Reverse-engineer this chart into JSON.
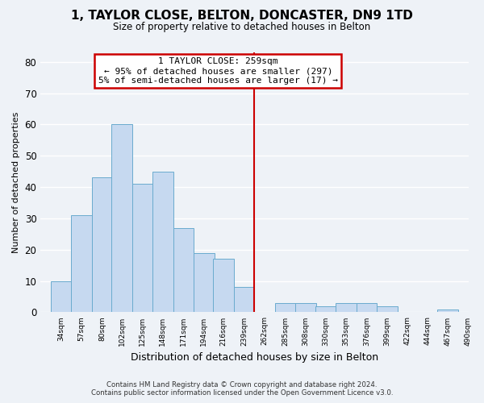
{
  "title": "1, TAYLOR CLOSE, BELTON, DONCASTER, DN9 1TD",
  "subtitle": "Size of property relative to detached houses in Belton",
  "xlabel": "Distribution of detached houses by size in Belton",
  "ylabel": "Number of detached properties",
  "bins": [
    34,
    57,
    80,
    102,
    125,
    148,
    171,
    194,
    216,
    239,
    262,
    285,
    308,
    330,
    353,
    376,
    399,
    422,
    444,
    467,
    490
  ],
  "counts": [
    10,
    31,
    43,
    60,
    41,
    45,
    27,
    19,
    17,
    8,
    0,
    3,
    3,
    2,
    3,
    3,
    2,
    0,
    0,
    1
  ],
  "bar_color": "#c6d9f0",
  "bar_edge_color": "#6aabce",
  "vline_x": 262,
  "vline_color": "#cc0000",
  "ylim": [
    0,
    83
  ],
  "yticks": [
    0,
    10,
    20,
    30,
    40,
    50,
    60,
    70,
    80
  ],
  "annotation_title": "1 TAYLOR CLOSE: 259sqm",
  "annotation_line1": "← 95% of detached houses are smaller (297)",
  "annotation_line2": "5% of semi-detached houses are larger (17) →",
  "annotation_box_color": "#ffffff",
  "annotation_box_edge": "#cc0000",
  "background_color": "#eef2f7",
  "grid_color": "#ffffff",
  "footnote1": "Contains HM Land Registry data © Crown copyright and database right 2024.",
  "footnote2": "Contains public sector information licensed under the Open Government Licence v3.0."
}
